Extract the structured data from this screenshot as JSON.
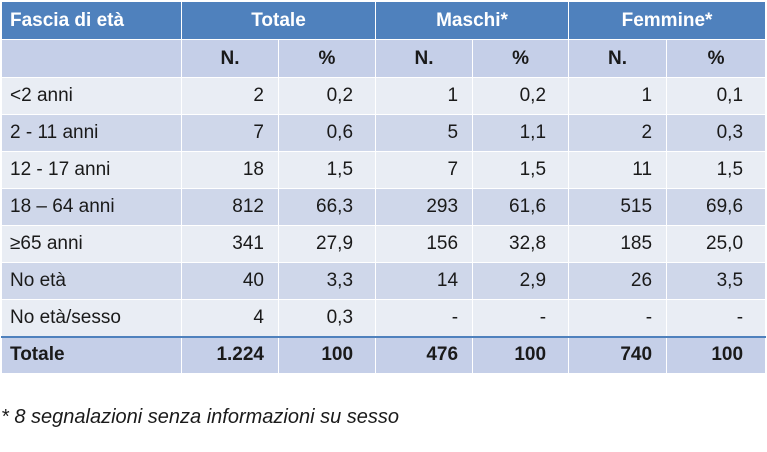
{
  "table": {
    "header": {
      "age_band": "Fascia di età",
      "groups": [
        "Totale",
        "Maschi*",
        "Femmine*"
      ],
      "subheaders": [
        "N.",
        "%",
        "N.",
        "%",
        "N.",
        "%"
      ]
    },
    "rows": [
      {
        "label": "<2 anni",
        "cells": [
          "2",
          "0,2",
          "1",
          "0,2",
          "1",
          "0,1"
        ]
      },
      {
        "label": "2 - 11 anni",
        "cells": [
          "7",
          "0,6",
          "5",
          "1,1",
          "2",
          "0,3"
        ]
      },
      {
        "label": "12 - 17 anni",
        "cells": [
          "18",
          "1,5",
          "7",
          "1,5",
          "11",
          "1,5"
        ]
      },
      {
        "label": "18 – 64 anni",
        "cells": [
          "812",
          "66,3",
          "293",
          "61,6",
          "515",
          "69,6"
        ]
      },
      {
        "label": "≥65 anni",
        "cells": [
          "341",
          "27,9",
          "156",
          "32,8",
          "185",
          "25,0"
        ]
      },
      {
        "label": "No età",
        "cells": [
          "40",
          "3,3",
          "14",
          "2,9",
          "26",
          "3,5"
        ]
      },
      {
        "label": "No età/sesso",
        "cells": [
          "4",
          "0,3",
          "-",
          "-",
          "-",
          "-"
        ]
      }
    ],
    "total": {
      "label": "Totale",
      "cells": [
        "1.224",
        "100",
        "476",
        "100",
        "740",
        "100"
      ]
    }
  },
  "footnote": "* 8 segnalazioni senza informazioni su sesso",
  "colors": {
    "header_bg": "#4f81bd",
    "subheader_bg": "#c5cfe8",
    "row_light": "#e9edf4",
    "row_dark": "#cfd7ea"
  }
}
